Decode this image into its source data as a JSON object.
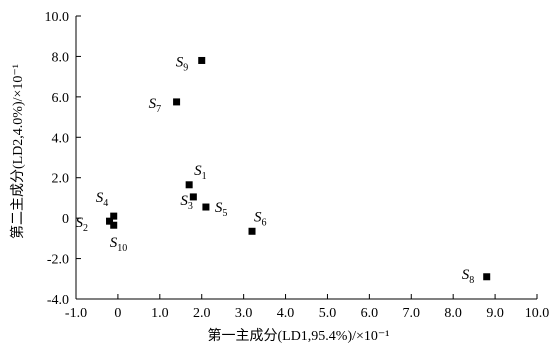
{
  "chart_data": {
    "type": "scatter",
    "xlabel": "第一主成分(LD1,95.4%)/×10⁻¹",
    "ylabel": "第二主成分(LD2,4.0%)/×10⁻¹",
    "xlim": [
      -1.0,
      10.0
    ],
    "ylim": [
      -4.0,
      10.0
    ],
    "x_ticks": [
      "-1.0",
      "0",
      "1.0",
      "2.0",
      "3.0",
      "4.0",
      "5.0",
      "6.0",
      "7.0",
      "8.0",
      "9.0",
      "10.0"
    ],
    "y_ticks": [
      "-4.0",
      "-2.0",
      "0",
      "2.0",
      "4.0",
      "6.0",
      "8.0",
      "10.0"
    ],
    "grid": false,
    "points": [
      {
        "label": "S",
        "sub": "1",
        "x": 1.7,
        "y": 1.65
      },
      {
        "label": "S",
        "sub": "2",
        "x": -0.2,
        "y": -0.15
      },
      {
        "label": "S",
        "sub": "3",
        "x": 1.8,
        "y": 1.05
      },
      {
        "label": "S",
        "sub": "4",
        "x": -0.1,
        "y": 0.1
      },
      {
        "label": "S",
        "sub": "5",
        "x": 2.1,
        "y": 0.55
      },
      {
        "label": "S",
        "sub": "6",
        "x": 3.2,
        "y": -0.65
      },
      {
        "label": "S",
        "sub": "7",
        "x": 1.4,
        "y": 5.75
      },
      {
        "label": "S",
        "sub": "8",
        "x": 8.8,
        "y": -2.9
      },
      {
        "label": "S",
        "sub": "9",
        "x": 2.0,
        "y": 7.8
      },
      {
        "label": "S",
        "sub": "10",
        "x": -0.1,
        "y": -0.35
      }
    ]
  }
}
